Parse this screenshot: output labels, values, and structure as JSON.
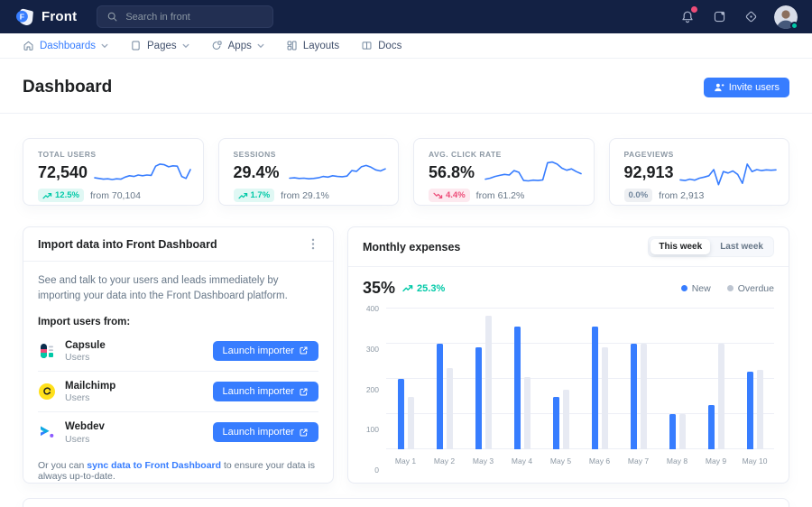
{
  "colors": {
    "primary": "#377dff",
    "success": "#00c9a7",
    "danger": "#ed4c78",
    "muted": "#71869d",
    "navbar_bg": "#132144",
    "overdue_bar": "#e7eaf3",
    "legend_overdue_dot": "#bdc5d1"
  },
  "topnav": {
    "brand": "Front",
    "search": {
      "placeholder": "Search in front"
    },
    "icons": [
      "bell-icon",
      "apps-icon",
      "settings-icon"
    ],
    "avatar_status": "online"
  },
  "subnav": {
    "items": [
      {
        "label": "Dashboards",
        "icon": "home-icon",
        "active": true,
        "caret": true
      },
      {
        "label": "Pages",
        "icon": "page-icon",
        "active": false,
        "caret": true
      },
      {
        "label": "Apps",
        "icon": "apps-circle-icon",
        "active": false,
        "caret": true
      },
      {
        "label": "Layouts",
        "icon": "layouts-icon",
        "active": false,
        "caret": false
      },
      {
        "label": "Docs",
        "icon": "docs-icon",
        "active": false,
        "caret": false
      }
    ]
  },
  "header": {
    "title": "Dashboard",
    "invite_button": "Invite users"
  },
  "stats": [
    {
      "label": "Total users",
      "value": "72,540",
      "delta": "12.5%",
      "delta_dir": "up",
      "from": "from 70,104"
    },
    {
      "label": "Sessions",
      "value": "29.4%",
      "delta": "1.7%",
      "delta_dir": "up",
      "from": "from 29.1%"
    },
    {
      "label": "Avg. click rate",
      "value": "56.8%",
      "delta": "4.4%",
      "delta_dir": "down",
      "from": "from 61.2%"
    },
    {
      "label": "Pageviews",
      "value": "92,913",
      "delta": "0.0%",
      "delta_dir": "flat",
      "from": "from 2,913"
    }
  ],
  "import_card": {
    "title": "Import data into Front Dashboard",
    "description": "See and talk to your users and leads immediately by importing your data into the Front Dashboard platform.",
    "subtitle": "Import users from:",
    "rows": [
      {
        "name": "Capsule",
        "sub": "Users",
        "button": "Launch importer",
        "icon": "capsule-icon"
      },
      {
        "name": "Mailchimp",
        "sub": "Users",
        "button": "Launch importer",
        "icon": "mailchimp-icon"
      },
      {
        "name": "Webdev",
        "sub": "Users",
        "button": "Launch importer",
        "icon": "webdev-icon"
      }
    ],
    "footer": {
      "prefix": "Or you can ",
      "link": "sync data to Front Dashboard",
      "suffix": " to ensure your data is always up-to-date."
    }
  },
  "expenses_card": {
    "title": "Monthly expenses",
    "toggle": [
      "This week",
      "Last week"
    ],
    "active_toggle": "This week",
    "value": "35%",
    "delta": "25.3%",
    "delta_dir": "up",
    "legend": [
      {
        "label": "New",
        "color": "#377dff"
      },
      {
        "label": "Overdue",
        "color": "#bdc5d1"
      }
    ]
  },
  "chart_data": [
    {
      "type": "bar",
      "title": "Monthly expenses",
      "categories": [
        "May 1",
        "May 2",
        "May 3",
        "May 4",
        "May 5",
        "May 6",
        "May 7",
        "May 8",
        "May 9",
        "May 10"
      ],
      "series": [
        {
          "name": "New",
          "color": "#377dff",
          "values": [
            200,
            300,
            290,
            350,
            150,
            350,
            300,
            100,
            125,
            220
          ]
        },
        {
          "name": "Overdue",
          "color": "#e7eaf3",
          "values": [
            150,
            230,
            380,
            205,
            170,
            290,
            300,
            100,
            300,
            225
          ]
        }
      ],
      "xlabel": "",
      "ylabel": "",
      "ylim": [
        0,
        400
      ],
      "yticks": [
        0,
        100,
        200,
        300,
        400
      ],
      "grid": true,
      "legend_position": "top-right"
    },
    {
      "type": "line",
      "title": "Total users sparkline",
      "y": [
        34,
        32,
        30,
        31,
        29,
        31,
        30,
        36,
        40,
        38,
        42,
        40,
        42,
        41,
        68,
        74,
        72,
        66,
        69,
        68,
        38,
        32,
        58
      ]
    },
    {
      "type": "line",
      "title": "Sessions sparkline",
      "y": [
        33,
        34,
        32,
        33,
        31,
        32,
        34,
        38,
        36,
        40,
        38,
        37,
        39,
        55,
        53,
        66,
        70,
        65,
        57,
        54,
        60
      ]
    },
    {
      "type": "line",
      "title": "Avg. click rate sparkline",
      "y": [
        30,
        33,
        38,
        41,
        44,
        42,
        55,
        50,
        26,
        25,
        27,
        26,
        28,
        78,
        80,
        74,
        62,
        56,
        60,
        52,
        46
      ]
    },
    {
      "type": "line",
      "title": "Pageviews sparkline",
      "y": [
        28,
        26,
        30,
        27,
        33,
        36,
        40,
        58,
        14,
        52,
        48,
        54,
        44,
        18,
        74,
        52,
        58,
        55,
        57,
        56,
        57
      ]
    }
  ]
}
